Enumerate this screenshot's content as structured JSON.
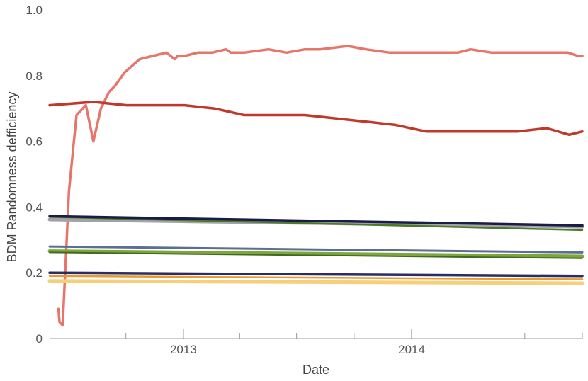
{
  "chart_data": {
    "type": "line",
    "title": "",
    "xlabel": "Date",
    "ylabel": "BDM Randomness defficiency",
    "ylim": [
      0,
      1.0
    ],
    "xlim": [
      "2012-06-01",
      "2014-10-01"
    ],
    "grid": false,
    "legend": "none",
    "x_ticks": [
      {
        "date": "2013-01-01",
        "label": "2013"
      },
      {
        "date": "2014-01-01",
        "label": "2014"
      }
    ],
    "x_minor_ticks": [
      "2012-10-01",
      "2013-04-01",
      "2013-07-01",
      "2013-10-01",
      "2014-04-01",
      "2014-07-01",
      "2014-10-01"
    ],
    "y_ticks": [
      {
        "value": 0,
        "label": "0"
      },
      {
        "value": 0.2,
        "label": "0.2"
      },
      {
        "value": 0.4,
        "label": "0.4"
      },
      {
        "value": 0.6,
        "label": "0.6"
      },
      {
        "value": 0.8,
        "label": "0.8"
      },
      {
        "value": 1.0,
        "label": "1.0"
      }
    ],
    "series": [
      {
        "color": "#e8756a",
        "width": 3.5,
        "x": [
          "2012-06-15",
          "2012-06-17",
          "2012-06-22",
          "2012-07-02",
          "2012-07-14",
          "2012-07-29",
          "2012-08-10",
          "2012-08-22",
          "2012-09-04",
          "2012-09-14",
          "2012-09-29",
          "2012-10-23",
          "2012-11-13",
          "2012-12-05",
          "2012-12-18",
          "2012-12-23",
          "2013-01-03",
          "2013-01-24",
          "2013-02-16",
          "2013-03-10",
          "2013-03-18",
          "2013-04-08",
          "2013-05-17",
          "2013-06-15",
          "2013-07-14",
          "2013-08-08",
          "2013-09-21",
          "2013-10-20",
          "2013-11-27",
          "2013-12-23",
          "2014-01-20",
          "2014-02-14",
          "2014-03-16",
          "2014-04-05",
          "2014-05-09",
          "2014-06-03",
          "2014-07-02",
          "2014-08-10",
          "2014-09-08",
          "2014-09-24",
          "2014-10-01"
        ],
        "y": [
          0.09,
          0.05,
          0.04,
          0.45,
          0.68,
          0.71,
          0.6,
          0.7,
          0.75,
          0.77,
          0.81,
          0.85,
          0.86,
          0.87,
          0.85,
          0.86,
          0.86,
          0.87,
          0.87,
          0.88,
          0.87,
          0.87,
          0.88,
          0.87,
          0.88,
          0.88,
          0.89,
          0.88,
          0.87,
          0.87,
          0.87,
          0.87,
          0.87,
          0.88,
          0.87,
          0.87,
          0.87,
          0.87,
          0.87,
          0.86,
          0.86
        ]
      },
      {
        "color": "#c0392b",
        "width": 3.5,
        "x": [
          "2012-06-01",
          "2012-08-10",
          "2012-10-02",
          "2012-11-18",
          "2013-01-03",
          "2013-02-20",
          "2013-04-08",
          "2013-05-27",
          "2013-07-14",
          "2013-09-01",
          "2013-10-20",
          "2013-12-06",
          "2014-01-24",
          "2014-03-12",
          "2014-05-01",
          "2014-06-19",
          "2014-08-05",
          "2014-09-10",
          "2014-10-01"
        ],
        "y": [
          0.71,
          0.72,
          0.71,
          0.71,
          0.71,
          0.7,
          0.68,
          0.68,
          0.68,
          0.67,
          0.66,
          0.65,
          0.63,
          0.63,
          0.63,
          0.63,
          0.64,
          0.62,
          0.63
        ]
      },
      {
        "color": "#a2a2a6",
        "width": 5,
        "x": [
          "2012-06-01",
          "2014-10-01"
        ],
        "y": [
          0.362,
          0.34
        ]
      },
      {
        "color": "#4a7a26",
        "width": 2.5,
        "x": [
          "2012-06-01",
          "2014-10-01"
        ],
        "y": [
          0.37,
          0.33
        ]
      },
      {
        "color": "#1b1b4a",
        "width": 3.5,
        "x": [
          "2012-06-01",
          "2014-10-01"
        ],
        "y": [
          0.372,
          0.344
        ]
      },
      {
        "color": "#7ea63a",
        "width": 5,
        "x": [
          "2012-06-01",
          "2014-10-01"
        ],
        "y": [
          0.266,
          0.25
        ]
      },
      {
        "color": "#3e6b20",
        "width": 2,
        "x": [
          "2012-06-01",
          "2014-10-01"
        ],
        "y": [
          0.262,
          0.244
        ]
      },
      {
        "color": "#5b6f95",
        "width": 3,
        "x": [
          "2012-06-01",
          "2014-10-01"
        ],
        "y": [
          0.28,
          0.262
        ]
      },
      {
        "color": "#f7cf7a",
        "width": 5,
        "x": [
          "2012-06-01",
          "2014-10-01"
        ],
        "y": [
          0.175,
          0.168
        ]
      },
      {
        "color": "#e79a2e",
        "width": 2.5,
        "x": [
          "2012-06-01",
          "2014-10-01"
        ],
        "y": [
          0.19,
          0.18
        ]
      },
      {
        "color": "#2a2c66",
        "width": 3.5,
        "x": [
          "2012-06-01",
          "2014-10-01"
        ],
        "y": [
          0.2,
          0.19
        ]
      }
    ]
  }
}
